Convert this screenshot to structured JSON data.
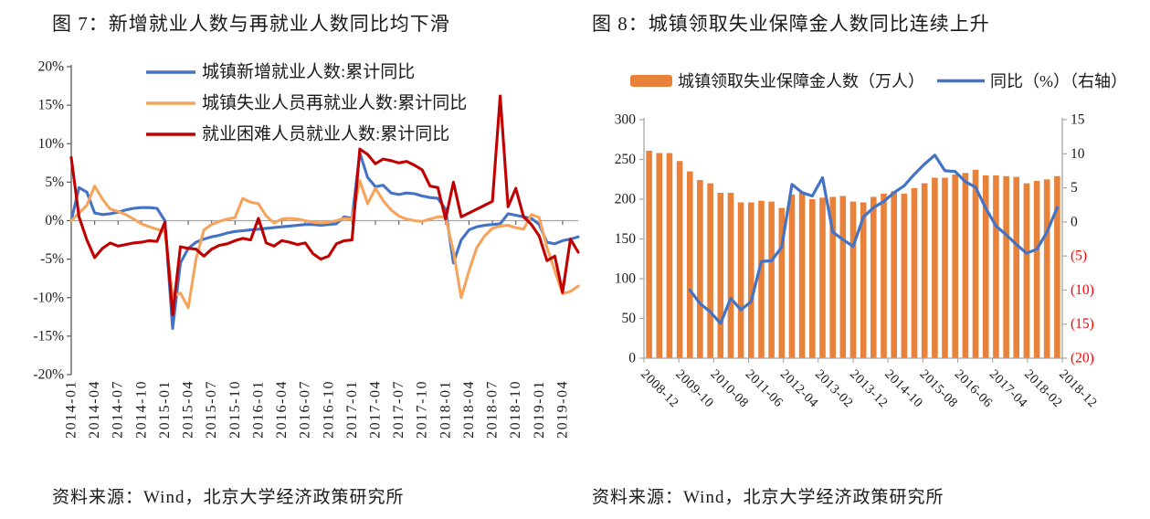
{
  "figures": [
    {
      "title": "图 7：新增就业人数与再就业人数同比均下滑",
      "source": "资料来源：Wind，北京大学经济政策研究所"
    },
    {
      "title": "图 8：城镇领取失业保障金人数同比连续上升",
      "source": "资料来源：Wind，北京大学经济政策研究所"
    }
  ],
  "chart_data": [
    {
      "type": "line",
      "title": "图 7：新增就业人数与再就业人数同比均下滑",
      "x_frequency": "monthly",
      "x_start": "2014-01",
      "x_end": "2019-06",
      "tick_every": 3,
      "x_tick_labels": [
        "2014-01",
        "2014-04",
        "2014-07",
        "2014-10",
        "2015-01",
        "2015-04",
        "2015-07",
        "2015-10",
        "2016-01",
        "2016-04",
        "2016-07",
        "2016-10",
        "2017-01",
        "2017-04",
        "2017-07",
        "2017-10",
        "2018-01",
        "2018-04",
        "2018-07",
        "2018-10",
        "2019-01",
        "2019-04"
      ],
      "ylim": [
        -20,
        20
      ],
      "y_ticks": [
        "20%",
        "15%",
        "10%",
        "5%",
        "0%",
        "-5%",
        "-10%",
        "-15%",
        "-20%"
      ],
      "grid": false,
      "legend_position": "top-left-inside",
      "axis_color": "#595959",
      "zero_line_color": "#a6a6a6",
      "series": [
        {
          "name": "城镇新增就业人数:累计同比",
          "color": "#4472C4",
          "values": [
            0.0,
            4.3,
            3.7,
            1.0,
            0.8,
            0.9,
            1.1,
            1.4,
            1.6,
            1.7,
            1.7,
            1.6,
            0.0,
            -14.0,
            -5.5,
            -3.6,
            -2.8,
            -2.4,
            -2.1,
            -1.9,
            -1.6,
            -1.4,
            -1.3,
            -1.2,
            -1.1,
            -1.0,
            -0.9,
            -0.8,
            -0.7,
            -0.6,
            -0.5,
            -0.5,
            -0.6,
            -0.5,
            -0.4,
            0.5,
            0.3,
            8.8,
            5.6,
            4.4,
            4.6,
            3.6,
            3.4,
            3.6,
            3.5,
            3.2,
            3.0,
            2.9,
            1.5,
            -5.5,
            -2.5,
            -1.2,
            -0.8,
            -0.6,
            -0.5,
            -0.4,
            0.9,
            0.7,
            0.5,
            0.3,
            -0.5,
            -2.8,
            -3.0,
            -2.6,
            -2.4,
            -2.1
          ]
        },
        {
          "name": "城镇失业人员再就业人数:累计同比",
          "color": "#F4A45C",
          "values": [
            0.0,
            1.0,
            2.0,
            4.5,
            2.8,
            1.5,
            1.2,
            0.8,
            0.2,
            -0.4,
            -0.8,
            -1.1,
            -1.5,
            -9.8,
            -9.4,
            -11.3,
            -5.0,
            -1.2,
            -0.5,
            -0.1,
            0.2,
            0.4,
            2.9,
            2.4,
            2.2,
            0.6,
            -0.3,
            0.2,
            0.3,
            0.2,
            0.0,
            -0.2,
            -0.3,
            -0.2,
            0.0,
            0.3,
            0.2,
            5.2,
            2.2,
            4.2,
            2.6,
            1.4,
            0.6,
            0.2,
            0.0,
            -0.1,
            0.2,
            0.5,
            0.5,
            -4.0,
            -10.0,
            -6.5,
            -3.5,
            -2.0,
            -1.0,
            -0.7,
            -0.6,
            -0.9,
            -1.1,
            0.8,
            0.4,
            -3.5,
            -6.5,
            -9.5,
            -9.2,
            -8.5
          ]
        },
        {
          "name": "就业困难人员就业人数:累计同比",
          "color": "#C00000",
          "values": [
            8.2,
            0.5,
            -2.5,
            -4.8,
            -3.6,
            -2.9,
            -3.3,
            -3.1,
            -2.9,
            -2.8,
            -2.6,
            -2.7,
            -0.2,
            -12.2,
            -3.4,
            -3.6,
            -3.7,
            -4.6,
            -3.7,
            -3.2,
            -3.0,
            -2.6,
            -2.3,
            -2.5,
            0.3,
            -2.9,
            -3.3,
            -2.6,
            -2.8,
            -3.1,
            -2.9,
            -4.3,
            -5.0,
            -4.6,
            -3.0,
            -2.6,
            -2.5,
            9.3,
            8.6,
            7.4,
            8.0,
            7.8,
            7.5,
            7.7,
            7.2,
            6.6,
            4.5,
            4.3,
            0.2,
            5.0,
            0.5,
            1.0,
            1.5,
            2.0,
            2.5,
            16.2,
            1.8,
            4.2,
            0.5,
            -0.5,
            -2.0,
            -5.2,
            -4.6,
            -9.3,
            -2.4,
            -4.1
          ]
        }
      ]
    },
    {
      "type": "combo-bar-line",
      "title": "图 8：城镇领取失业保障金人数同比连续上升",
      "x_frequency": "quarterly",
      "x_start": "2008-12",
      "x_end": "2018-12",
      "x_tick_labels": [
        "2008-12",
        "2009-10",
        "2010-08",
        "2011-06",
        "2012-04",
        "2013-02",
        "2013-12",
        "2014-10",
        "2015-08",
        "2016-06",
        "2017-04",
        "2018-02",
        "2018-12"
      ],
      "ylim_left": [
        0,
        300
      ],
      "y_ticks_left": [
        "300",
        "250",
        "200",
        "150",
        "100",
        "50",
        "0"
      ],
      "ylim_right": [
        -20,
        15
      ],
      "y_ticks_right": [
        "15",
        "10",
        "5",
        "0",
        "(5)",
        "(10)",
        "(15)",
        "(20)"
      ],
      "right_negative_color": "#FF0000",
      "axis_color": "#a6a6a6",
      "grid": false,
      "legend_position": "top-center",
      "bars": {
        "name": "城镇领取失业保障金人数（万人）",
        "color": "#E8823A",
        "values": [
          261,
          258,
          258,
          248,
          235,
          224,
          220,
          208,
          208,
          196,
          196,
          198,
          197,
          189,
          206,
          208,
          200,
          202,
          203,
          204,
          197,
          196,
          203,
          207,
          210,
          207,
          214,
          220,
          227,
          227,
          231,
          233,
          237,
          230,
          230,
          229,
          228,
          220,
          223,
          225,
          229
        ]
      },
      "line": {
        "name": "同比（%）（右轴）",
        "color": "#4472C4",
        "axis": "right",
        "values": [
          null,
          null,
          null,
          null,
          -10.0,
          -12.0,
          -13.2,
          -14.9,
          -11.2,
          -12.9,
          -11.7,
          -5.8,
          -5.7,
          -3.7,
          5.5,
          4.3,
          3.8,
          6.5,
          -1.5,
          -2.6,
          -3.6,
          0.7,
          2.1,
          3.0,
          4.3,
          5.3,
          7.0,
          8.5,
          9.8,
          7.5,
          7.4,
          5.9,
          5.1,
          2.0,
          -0.6,
          -1.9,
          -3.3,
          -4.6,
          -4.0,
          -1.5,
          2.1
        ]
      }
    }
  ]
}
